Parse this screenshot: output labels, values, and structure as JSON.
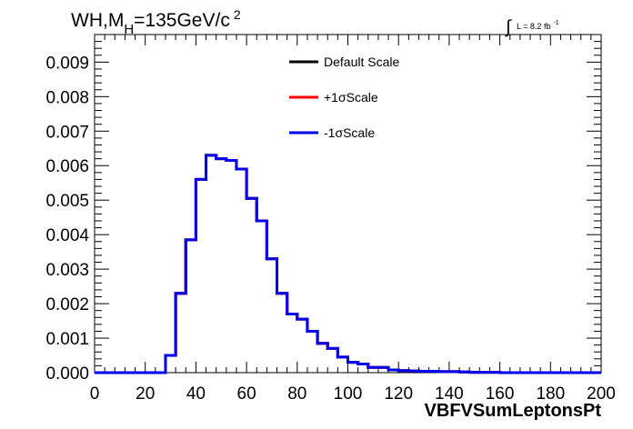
{
  "header": {
    "title_main": "WH,M",
    "title_sub": "H",
    "title_rest": "=135GeV/c",
    "title_sup": "2",
    "lumi_label": "L = 8.2 fb",
    "lumi_sup": "-1",
    "integral_symbol": "∫"
  },
  "chart_data": {
    "type": "line",
    "xlabel": "VBFVSumLeptonsPt",
    "ylabel": "",
    "xlim": [
      0,
      200
    ],
    "ylim": [
      0,
      0.0098
    ],
    "x_ticks": [
      "0",
      "20",
      "40",
      "60",
      "80",
      "100",
      "120",
      "140",
      "160",
      "180",
      "200"
    ],
    "y_ticks": [
      "0.000",
      "0.001",
      "0.002",
      "0.003",
      "0.004",
      "0.005",
      "0.006",
      "0.007",
      "0.008",
      "0.009"
    ],
    "bin_width": 4,
    "x_bin_edges_start": 0,
    "legend_position": "top-center",
    "series": [
      {
        "name": "Default Scale",
        "color": "#000000",
        "values": [
          0,
          0,
          0,
          0,
          0,
          0,
          0,
          0.0005,
          0.0023,
          0.00385,
          0.0056,
          0.0063,
          0.0062,
          0.00615,
          0.0059,
          0.00505,
          0.0044,
          0.0033,
          0.0023,
          0.0017,
          0.00155,
          0.0012,
          0.00085,
          0.0007,
          0.00045,
          0.0003,
          0.00025,
          0.00015,
          0.00015,
          8e-05,
          6e-05,
          5e-05,
          4e-05,
          4e-05,
          3e-05,
          3e-05,
          2e-05,
          1e-05,
          1e-05,
          1e-05,
          0,
          0,
          0,
          0,
          0,
          0,
          0,
          0,
          0,
          0
        ]
      },
      {
        "name": "+1σScale",
        "color": "#ff0000",
        "values": [
          0,
          0,
          0,
          0,
          0,
          0,
          0,
          0.0005,
          0.0023,
          0.00385,
          0.0056,
          0.0063,
          0.0062,
          0.00615,
          0.0059,
          0.00505,
          0.0044,
          0.0033,
          0.0023,
          0.0017,
          0.00155,
          0.0012,
          0.00085,
          0.0007,
          0.00045,
          0.0003,
          0.00025,
          0.00015,
          0.00015,
          8e-05,
          6e-05,
          5e-05,
          4e-05,
          4e-05,
          3e-05,
          3e-05,
          2e-05,
          1e-05,
          1e-05,
          1e-05,
          0,
          0,
          0,
          0,
          0,
          0,
          0,
          0,
          0,
          0
        ]
      },
      {
        "name": "-1σScale",
        "color": "#0000ee",
        "values": [
          0,
          0,
          0,
          0,
          0,
          0,
          0,
          0.0005,
          0.0023,
          0.00385,
          0.0056,
          0.0063,
          0.0062,
          0.00615,
          0.0059,
          0.00505,
          0.0044,
          0.0033,
          0.0023,
          0.0017,
          0.00155,
          0.0012,
          0.00085,
          0.0007,
          0.00045,
          0.0003,
          0.00025,
          0.00015,
          0.00015,
          8e-05,
          6e-05,
          5e-05,
          4e-05,
          4e-05,
          3e-05,
          3e-05,
          2e-05,
          1e-05,
          1e-05,
          1e-05,
          0,
          0,
          0,
          0,
          0,
          0,
          0,
          0,
          0,
          0
        ]
      }
    ]
  }
}
